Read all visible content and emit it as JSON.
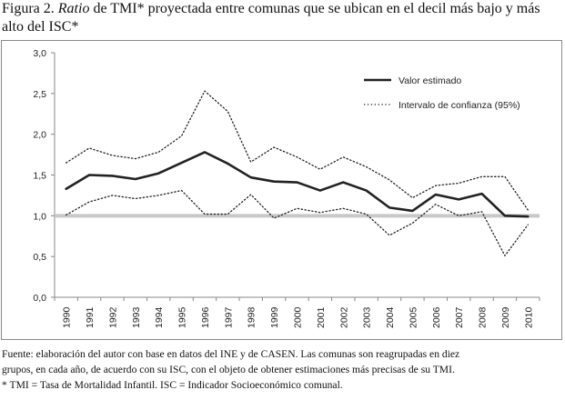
{
  "figure": {
    "title_prefix": "Figura 2. ",
    "title_italic": "Ratio",
    "title_suffix": " de TMI* proyectada entre comunas que se ubican en el decil más bajo y más alto del ISC*",
    "footer_lines": [
      "Fuente: elaboración del autor con base en datos del INE y de CASEN. Las comunas son reagrupadas en diez",
      "grupos, en cada año, de acuerdo con su ISC, con el objeto de obtener estimaciones más precisas de su TMI.",
      "* TMI = Tasa de Mortalidad Infantil. ISC = Indicador Socioeconómico comunal."
    ]
  },
  "chart_data": {
    "type": "line",
    "x": [
      "1990",
      "1991",
      "1992",
      "1993",
      "1994",
      "1995",
      "1996",
      "1997",
      "1998",
      "1999",
      "2000",
      "2001",
      "2002",
      "2003",
      "2004",
      "2005",
      "2006",
      "2007",
      "2008",
      "2009",
      "2010"
    ],
    "ylim": [
      0,
      3
    ],
    "yticks": [
      "0,0",
      "0,5",
      "1,0",
      "1,5",
      "2,0",
      "2,5",
      "3,0"
    ],
    "ytick_values": [
      0,
      0.5,
      1.0,
      1.5,
      2.0,
      2.5,
      3.0
    ],
    "reference_line": 1.0,
    "legend_position": "top-right",
    "series": [
      {
        "name": "Valor estimado",
        "style": "solid",
        "color": "#222222",
        "values": [
          1.33,
          1.5,
          1.49,
          1.45,
          1.52,
          1.65,
          1.78,
          1.64,
          1.47,
          1.42,
          1.41,
          1.31,
          1.41,
          1.31,
          1.1,
          1.06,
          1.26,
          1.2,
          1.27,
          1.0,
          0.99
        ]
      },
      {
        "name": "Intervalo de confianza (95%)",
        "style": "dotted",
        "color": "#222222",
        "values": [
          1.65,
          1.83,
          1.74,
          1.7,
          1.78,
          1.98,
          2.53,
          2.28,
          1.66,
          1.84,
          1.72,
          1.57,
          1.72,
          1.6,
          1.44,
          1.22,
          1.37,
          1.4,
          1.48,
          1.48,
          1.07
        ]
      },
      {
        "name": "",
        "style": "dotted",
        "color": "#222222",
        "values": [
          1.01,
          1.17,
          1.25,
          1.21,
          1.25,
          1.31,
          1.02,
          1.02,
          1.26,
          0.97,
          1.09,
          1.04,
          1.09,
          1.02,
          0.76,
          0.91,
          1.14,
          1.0,
          1.05,
          0.51,
          0.89
        ]
      }
    ]
  }
}
